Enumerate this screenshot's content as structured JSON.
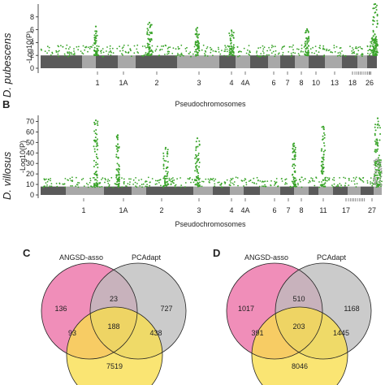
{
  "colors": {
    "dark_gray": "#5a5a5a",
    "light_gray": "#a8a8a8",
    "green": "#3aa42a",
    "pink": "#ec6ea5",
    "gray_set": "#bdbdbd",
    "yellow": "#f8de4c",
    "orange": "#f2a44a",
    "mauve": "#a2788a",
    "olive": "#c8b26a",
    "brown": "#b8866a"
  },
  "chart_data": [
    {
      "type": "scatter",
      "panel": "",
      "species": "D. pubescens",
      "ylabel": "-Log10(P)",
      "xlabel": "Pseudochromosomes",
      "ylim": [
        0,
        10
      ],
      "yticks": [
        0,
        2,
        4,
        6,
        8
      ],
      "chromosome_labels": [
        "1",
        "1A",
        "2",
        "3",
        "4",
        "4A",
        "6",
        "7",
        "8",
        "10",
        "13",
        "18",
        "26"
      ],
      "peaks": [
        {
          "chrom": "1",
          "max": 6.5
        },
        {
          "chrom": "2",
          "max": 7.1
        },
        {
          "chrom": "3",
          "max": 6.3
        },
        {
          "chrom": "4",
          "max": 5.9
        },
        {
          "chrom": "10",
          "max": 6.1
        },
        {
          "chrom": "26",
          "max": 10.0
        }
      ]
    },
    {
      "type": "scatter",
      "panel": "B",
      "species": "D. villosus",
      "ylabel": "-Log10(P)",
      "xlabel": "Pseudochromosomes",
      "ylim": [
        0,
        75
      ],
      "yticks": [
        0,
        10,
        20,
        30,
        40,
        50,
        60,
        70
      ],
      "chromosome_labels": [
        "1",
        "1A",
        "2",
        "3",
        "4",
        "4A",
        "6",
        "7",
        "8",
        "11",
        "17",
        "27"
      ],
      "peaks": [
        {
          "chrom": "1",
          "max": 71
        },
        {
          "chrom": "1A",
          "max": 57
        },
        {
          "chrom": "2",
          "max": 45
        },
        {
          "chrom": "3",
          "max": 54
        },
        {
          "chrom": "8",
          "max": 49
        },
        {
          "chrom": "11",
          "max": 65
        },
        {
          "chrom": "27",
          "max": 73
        }
      ]
    }
  ],
  "venns": [
    {
      "panel": "C",
      "sets": [
        "ANGSD-asso",
        "PCAdapt"
      ],
      "regions": {
        "pink_only": "136",
        "gray_only": "727",
        "pink_gray": "23",
        "center": "188",
        "pink_yellow": "93",
        "gray_yellow": "438",
        "yellow_only": "7519"
      }
    },
    {
      "panel": "D",
      "sets": [
        "ANGSD-asso",
        "PCAdapt"
      ],
      "regions": {
        "pink_only": "1017",
        "gray_only": "1168",
        "pink_gray": "510",
        "center": "203",
        "pink_yellow": "391",
        "gray_yellow": "1445",
        "yellow_only": "8046"
      }
    }
  ]
}
